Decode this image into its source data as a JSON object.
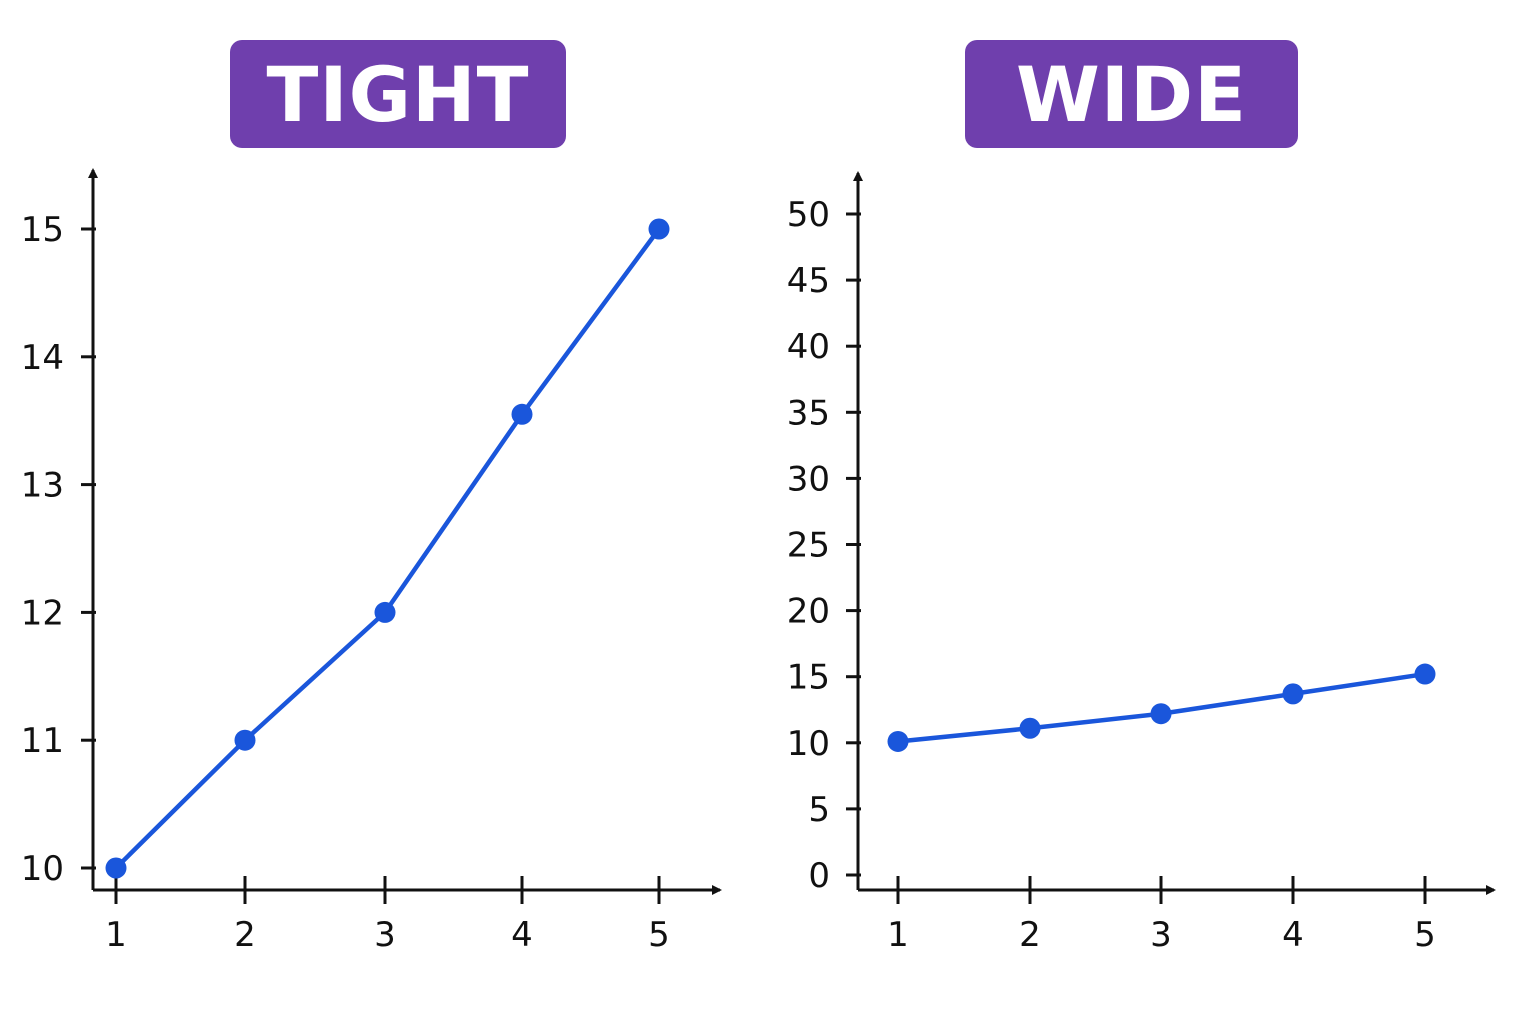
{
  "colors": {
    "badge": "#6f3fad",
    "badge_text": "#ffffff",
    "line": "#1a56db",
    "axis": "#111111"
  },
  "chart_data": [
    {
      "type": "line",
      "title": "TIGHT",
      "xlabel": "",
      "ylabel": "",
      "x": [
        1,
        2,
        3,
        4,
        5
      ],
      "series": [
        {
          "values": [
            10,
            11,
            12,
            13.55,
            15
          ]
        }
      ],
      "xticks": [
        "1",
        "2",
        "3",
        "4",
        "5"
      ],
      "yticks": [
        "10",
        "11",
        "12",
        "13",
        "14",
        "15"
      ],
      "ylim": [
        10,
        15
      ],
      "grid": false,
      "legend": "none"
    },
    {
      "type": "line",
      "title": "WIDE",
      "xlabel": "",
      "ylabel": "",
      "x": [
        1,
        2,
        3,
        4,
        5
      ],
      "series": [
        {
          "values": [
            10.1,
            11.1,
            12.2,
            13.7,
            15.2
          ]
        }
      ],
      "xticks": [
        "1",
        "2",
        "3",
        "4",
        "5"
      ],
      "yticks": [
        "0",
        "5",
        "10",
        "15",
        "20",
        "25",
        "30",
        "35",
        "40",
        "45",
        "50"
      ],
      "ylim": [
        0,
        50
      ],
      "grid": false,
      "legend": "none"
    }
  ]
}
